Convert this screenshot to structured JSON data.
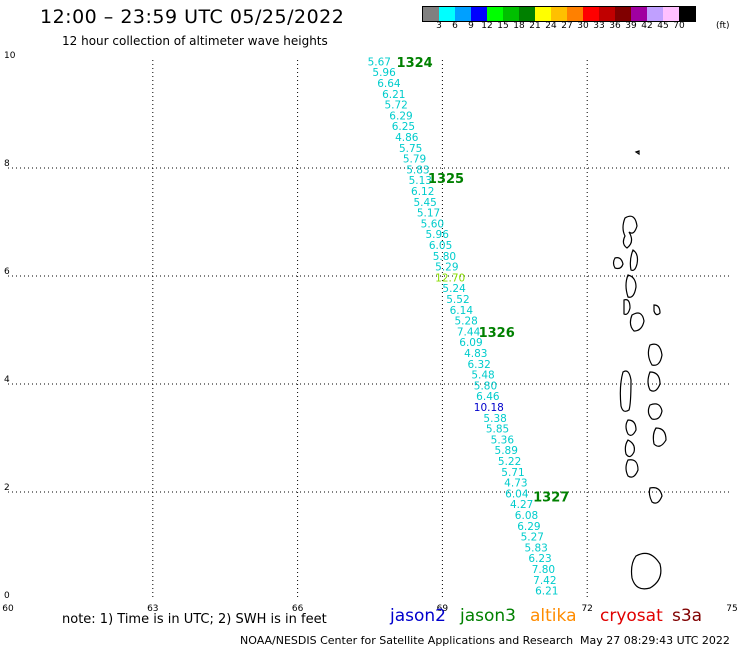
{
  "title": "12:00 – 23:59 UTC 05/25/2022",
  "subtitle": "12 hour collection of altimeter wave heights",
  "colorbar": {
    "unit": "(ft)",
    "labels": [
      "3",
      "6",
      "9",
      "12",
      "15",
      "18",
      "21",
      "24",
      "27",
      "30",
      "33",
      "36",
      "39",
      "42",
      "45",
      "70"
    ],
    "colors": [
      "#808080",
      "#00ffff",
      "#00a0ff",
      "#0000ff",
      "#00ff00",
      "#00c000",
      "#008000",
      "#ffff00",
      "#ffc000",
      "#ff8000",
      "#ff0000",
      "#c00000",
      "#800000",
      "#a000a0",
      "#c0a0ff",
      "#ffc0ff",
      "#000000"
    ]
  },
  "axes": {
    "x_ticks": [
      "60",
      "63",
      "66",
      "69",
      "72",
      "75"
    ],
    "y_ticks": [
      "0",
      "2",
      "4",
      "6",
      "8",
      "10"
    ]
  },
  "note": "note:  1) Time is in UTC;  2) SWH is in feet",
  "satellites": [
    {
      "name": "jason2",
      "color": "#0000cc"
    },
    {
      "name": "jason3",
      "color": "#008000"
    },
    {
      "name": "altika",
      "color": "#ff8c00"
    },
    {
      "name": "cryosat",
      "color": "#e00000"
    },
    {
      "name": "s3a",
      "color": "#800000"
    }
  ],
  "footer": {
    "center": "NOAA/NESDIS Center for Satellite Applications and Research",
    "timestamp": "May 27 08:29:43 UTC 2022"
  },
  "time_labels": [
    {
      "text": "1324",
      "lon": 68.05,
      "lat": 9.87
    },
    {
      "text": "1325",
      "lon": 68.7,
      "lat": 7.72
    },
    {
      "text": "1326",
      "lon": 69.75,
      "lat": 4.87
    },
    {
      "text": "1327",
      "lon": 70.88,
      "lat": 1.82
    }
  ],
  "wave_heights": [
    {
      "v": "5.67",
      "lon": 67.45,
      "lat": 9.9,
      "c": "#00cccc"
    },
    {
      "v": "5.96",
      "lon": 67.55,
      "lat": 9.7,
      "c": "#00cccc"
    },
    {
      "v": "6.64",
      "lon": 67.65,
      "lat": 9.5,
      "c": "#00cccc"
    },
    {
      "v": "6.21",
      "lon": 67.75,
      "lat": 9.3,
      "c": "#00cccc"
    },
    {
      "v": "5.72",
      "lon": 67.8,
      "lat": 9.1,
      "c": "#00cccc"
    },
    {
      "v": "6.29",
      "lon": 67.9,
      "lat": 8.9,
      "c": "#00cccc"
    },
    {
      "v": "6.25",
      "lon": 67.95,
      "lat": 8.7,
      "c": "#00cccc"
    },
    {
      "v": "4.86",
      "lon": 68.02,
      "lat": 8.5,
      "c": "#00cccc"
    },
    {
      "v": "5.75",
      "lon": 68.1,
      "lat": 8.3,
      "c": "#00cccc"
    },
    {
      "v": "5.79",
      "lon": 68.18,
      "lat": 8.1,
      "c": "#00cccc"
    },
    {
      "v": "5.83",
      "lon": 68.25,
      "lat": 7.9,
      "c": "#00cccc"
    },
    {
      "v": "5.13",
      "lon": 68.3,
      "lat": 7.7,
      "c": "#00cccc"
    },
    {
      "v": "6.12",
      "lon": 68.35,
      "lat": 7.5,
      "c": "#00cccc"
    },
    {
      "v": "5.45",
      "lon": 68.4,
      "lat": 7.3,
      "c": "#00cccc"
    },
    {
      "v": "5.17",
      "lon": 68.47,
      "lat": 7.1,
      "c": "#00cccc"
    },
    {
      "v": "5.60",
      "lon": 68.55,
      "lat": 6.9,
      "c": "#00cccc"
    },
    {
      "v": "5.96",
      "lon": 68.65,
      "lat": 6.7,
      "c": "#00cccc"
    },
    {
      "v": "6.05",
      "lon": 68.72,
      "lat": 6.5,
      "c": "#00cccc"
    },
    {
      "v": "5.80",
      "lon": 68.8,
      "lat": 6.3,
      "c": "#00cccc"
    },
    {
      "v": "5.29",
      "lon": 68.85,
      "lat": 6.1,
      "c": "#00cccc"
    },
    {
      "v": "12.70",
      "lon": 68.85,
      "lat": 5.9,
      "c": "#88dd00"
    },
    {
      "v": "5.24",
      "lon": 69.0,
      "lat": 5.7,
      "c": "#00cccc"
    },
    {
      "v": "5.52",
      "lon": 69.08,
      "lat": 5.5,
      "c": "#00cccc"
    },
    {
      "v": "6.14",
      "lon": 69.15,
      "lat": 5.3,
      "c": "#00cccc"
    },
    {
      "v": "5.28",
      "lon": 69.25,
      "lat": 5.1,
      "c": "#00cccc"
    },
    {
      "v": "7.44",
      "lon": 69.3,
      "lat": 4.9,
      "c": "#00cccc"
    },
    {
      "v": "6.09",
      "lon": 69.35,
      "lat": 4.7,
      "c": "#00cccc"
    },
    {
      "v": "4.83",
      "lon": 69.45,
      "lat": 4.5,
      "c": "#00cccc"
    },
    {
      "v": "6.32",
      "lon": 69.52,
      "lat": 4.3,
      "c": "#00cccc"
    },
    {
      "v": "5.48",
      "lon": 69.6,
      "lat": 4.1,
      "c": "#00cccc"
    },
    {
      "v": "5.80",
      "lon": 69.65,
      "lat": 3.9,
      "c": "#00cccc"
    },
    {
      "v": "6.46",
      "lon": 69.7,
      "lat": 3.7,
      "c": "#00cccc"
    },
    {
      "v": "10.18",
      "lon": 69.65,
      "lat": 3.5,
      "c": "#0000cc"
    },
    {
      "v": "5.38",
      "lon": 69.85,
      "lat": 3.3,
      "c": "#00cccc"
    },
    {
      "v": "5.85",
      "lon": 69.9,
      "lat": 3.1,
      "c": "#00cccc"
    },
    {
      "v": "5.36",
      "lon": 70.0,
      "lat": 2.9,
      "c": "#00cccc"
    },
    {
      "v": "5.89",
      "lon": 70.08,
      "lat": 2.7,
      "c": "#00cccc"
    },
    {
      "v": "5.22",
      "lon": 70.15,
      "lat": 2.5,
      "c": "#00cccc"
    },
    {
      "v": "5.71",
      "lon": 70.22,
      "lat": 2.3,
      "c": "#00cccc"
    },
    {
      "v": "4.73",
      "lon": 70.28,
      "lat": 2.1,
      "c": "#00cccc"
    },
    {
      "v": "6.04",
      "lon": 70.3,
      "lat": 1.9,
      "c": "#00cccc"
    },
    {
      "v": "4.27",
      "lon": 70.4,
      "lat": 1.7,
      "c": "#00cccc"
    },
    {
      "v": "6.08",
      "lon": 70.5,
      "lat": 1.5,
      "c": "#00cccc"
    },
    {
      "v": "6.29",
      "lon": 70.55,
      "lat": 1.3,
      "c": "#00cccc"
    },
    {
      "v": "5.27",
      "lon": 70.62,
      "lat": 1.1,
      "c": "#00cccc"
    },
    {
      "v": "5.83",
      "lon": 70.7,
      "lat": 0.9,
      "c": "#00cccc"
    },
    {
      "v": "6.23",
      "lon": 70.78,
      "lat": 0.7,
      "c": "#00cccc"
    },
    {
      "v": "7.80",
      "lon": 70.85,
      "lat": 0.5,
      "c": "#00cccc"
    },
    {
      "v": "7.42",
      "lon": 70.88,
      "lat": 0.3,
      "c": "#00cccc"
    },
    {
      "v": "6.21",
      "lon": 70.92,
      "lat": 0.1,
      "c": "#00cccc"
    }
  ]
}
